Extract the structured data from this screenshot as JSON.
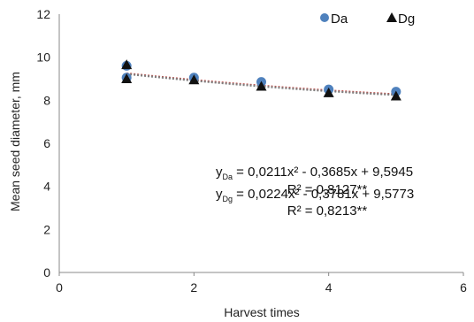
{
  "chart_data": {
    "type": "scatter",
    "xlabel": "Harvest times",
    "ylabel": "Mean seed diameter, mm",
    "xlim": [
      0,
      6
    ],
    "ylim": [
      0,
      12
    ],
    "xticks": [
      "0",
      "2",
      "4",
      "6"
    ],
    "yticks": [
      "0",
      "2",
      "4",
      "6",
      "8",
      "10",
      "12"
    ],
    "grid": false,
    "legend": "top-right",
    "series": [
      {
        "name": "Da",
        "marker": "circle",
        "color": "#4f81bd",
        "x": [
          1,
          1,
          2,
          3,
          4,
          5
        ],
        "y": [
          9.6,
          9.05,
          9.05,
          8.85,
          8.5,
          8.4
        ],
        "fit": {
          "a": 0.0211,
          "b": -0.3685,
          "c": 9.5945,
          "color": "#c0504d"
        }
      },
      {
        "name": "Dg",
        "marker": "triangle",
        "color": "#111111",
        "x": [
          1,
          1,
          2,
          3,
          4,
          5
        ],
        "y": [
          9.65,
          9.0,
          8.95,
          8.65,
          8.35,
          8.2
        ],
        "fit": {
          "a": 0.0224,
          "b": -0.3781,
          "c": 9.5773,
          "color": "#7f7f7f"
        }
      }
    ],
    "annotations": {
      "eq1_prefix": "y",
      "eq1_sub": "Da",
      "eq1_rest": " = 0,0211x² - 0,3685x + 9,5945",
      "r2_1": "R² = 0,8127**",
      "eq2_prefix": "y",
      "eq2_sub": "Dg",
      "eq2_rest": " = 0,0224x² - 0,3781x + 9,5773",
      "r2_2": "R² = 0,8213**"
    }
  }
}
